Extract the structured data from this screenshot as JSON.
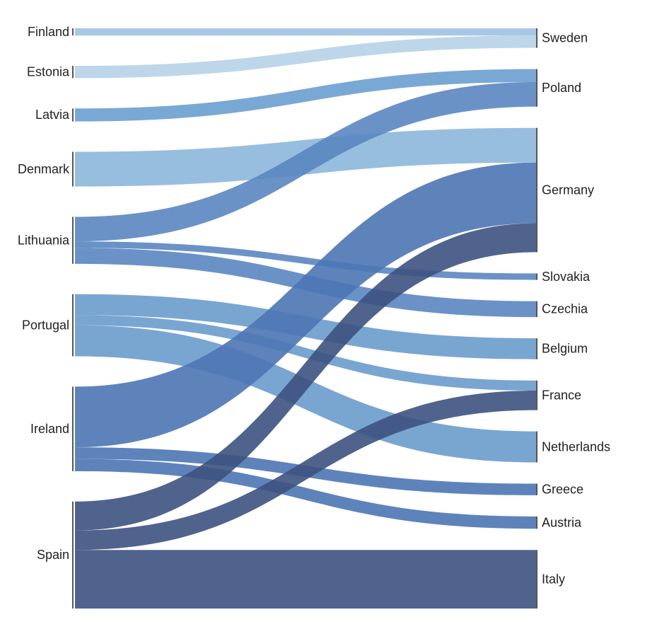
{
  "chart_data": {
    "type": "sankey",
    "nodes": [
      {
        "name": "Finland",
        "color": "#9dc1e1"
      },
      {
        "name": "Estonia",
        "color": "#b6d2e8"
      },
      {
        "name": "Latvia",
        "color": "#6b9fcf"
      },
      {
        "name": "Denmark",
        "color": "#8cb7db"
      },
      {
        "name": "Lithuania",
        "color": "#5a86c1"
      },
      {
        "name": "Portugal",
        "color": "#6a9bcc"
      },
      {
        "name": "Ireland",
        "color": "#4c76b4"
      },
      {
        "name": "Spain",
        "color": "#3d527f"
      },
      {
        "name": "Sweden"
      },
      {
        "name": "Poland"
      },
      {
        "name": "Germany"
      },
      {
        "name": "Slovakia"
      },
      {
        "name": "Czechia"
      },
      {
        "name": "Belgium"
      },
      {
        "name": "France"
      },
      {
        "name": "Netherlands"
      },
      {
        "name": "Greece"
      },
      {
        "name": "Austria"
      },
      {
        "name": "Italy"
      }
    ],
    "links": [
      {
        "source": "Finland",
        "target": "Sweden",
        "value": 10
      },
      {
        "source": "Estonia",
        "target": "Sweden",
        "value": 17
      },
      {
        "source": "Latvia",
        "target": "Poland",
        "value": 18
      },
      {
        "source": "Denmark",
        "target": "Germany",
        "value": 48
      },
      {
        "source": "Lithuania",
        "target": "Poland",
        "value": 34
      },
      {
        "source": "Lithuania",
        "target": "Slovakia",
        "value": 9
      },
      {
        "source": "Lithuania",
        "target": "Czechia",
        "value": 22
      },
      {
        "source": "Portugal",
        "target": "Belgium",
        "value": 29
      },
      {
        "source": "Portugal",
        "target": "France",
        "value": 14
      },
      {
        "source": "Portugal",
        "target": "Netherlands",
        "value": 43
      },
      {
        "source": "Ireland",
        "target": "Germany",
        "value": 84
      },
      {
        "source": "Ireland",
        "target": "Greece",
        "value": 16
      },
      {
        "source": "Ireland",
        "target": "Austria",
        "value": 17
      },
      {
        "source": "Spain",
        "target": "Germany",
        "value": 40
      },
      {
        "source": "Spain",
        "target": "France",
        "value": 27
      },
      {
        "source": "Spain",
        "target": "Italy",
        "value": 81
      }
    ]
  }
}
